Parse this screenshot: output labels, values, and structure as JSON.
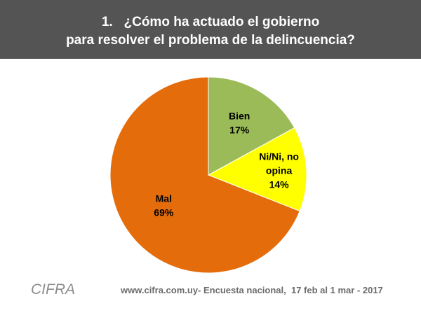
{
  "title": {
    "line1": "1.   ¿Cómo ha actuado el gobierno",
    "line2": "para resolver el problema de la delincuencia?"
  },
  "chart_data": {
    "type": "pie",
    "slices": [
      {
        "label": "Bien",
        "value": 17,
        "value_label": "17%",
        "color": "#9bbb59"
      },
      {
        "label": "Ni/Ni, no opina",
        "label_lines": [
          "Ni/Ni, no",
          "opina"
        ],
        "value": 14,
        "value_label": "14%",
        "color": "#ffff00"
      },
      {
        "label": "Mal",
        "value": 69,
        "value_label": "69%",
        "color": "#e46c0a"
      }
    ],
    "start": "12 o'clock",
    "direction": "clockwise"
  },
  "footer": {
    "logo": "CIFRA",
    "source": "www.cifra.com.uy- Encuesta nacional,  17 feb al 1 mar - 2017"
  },
  "colors": {
    "header_bg": "#545454",
    "outline": "#ffffff"
  }
}
